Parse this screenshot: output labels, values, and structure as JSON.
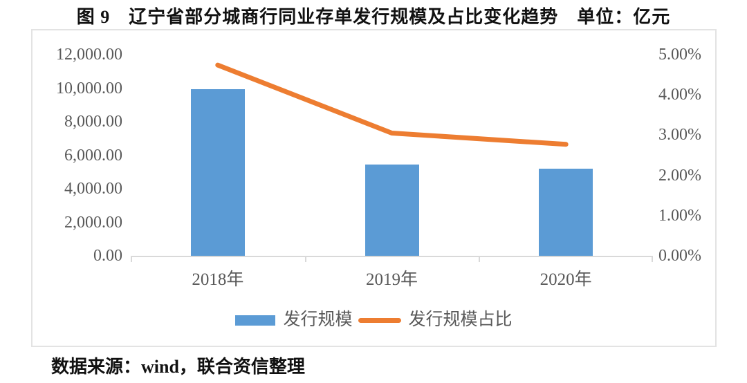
{
  "title": "图 9　辽宁省部分城商行同业存单发行规模及占比变化趋势　单位：亿元",
  "source": "数据来源：wind，联合资信整理",
  "colors": {
    "bar": "#5B9BD5",
    "line": "#ED7D31",
    "axis_text": "#595959",
    "axis_line": "#D9D9D9",
    "frame_border": "#E3E3E3",
    "title_text": "#111111"
  },
  "chart_data": {
    "type": "bar",
    "subtype": "combo-bar-line-dual-axis",
    "title": "图 9　辽宁省部分城商行同业存单发行规模及占比变化趋势　单位：亿元",
    "categories": [
      "2018年",
      "2019年",
      "2020年"
    ],
    "series": [
      {
        "name": "发行规模",
        "type": "bar",
        "axis": "left",
        "values": [
          9950,
          5440,
          5210
        ],
        "color": "#5B9BD5"
      },
      {
        "name": "发行规模占比",
        "type": "line",
        "axis": "right",
        "values": [
          4.74,
          3.05,
          2.77
        ],
        "unit": "%",
        "color": "#ED7D31"
      }
    ],
    "left_axis": {
      "min": 0,
      "max": 12000,
      "step": 2000,
      "ticks": [
        "12,000.00",
        "10,000.00",
        "8,000.00",
        "6,000.00",
        "4,000.00",
        "2,000.00",
        "0.00"
      ]
    },
    "right_axis": {
      "min": 0,
      "max": 5,
      "step": 1,
      "ticks": [
        "5.00%",
        "4.00%",
        "3.00%",
        "2.00%",
        "1.00%",
        "0.00%"
      ]
    },
    "grid": false,
    "legend_position": "bottom",
    "legend": [
      "发行规模",
      "发行规模占比"
    ]
  }
}
